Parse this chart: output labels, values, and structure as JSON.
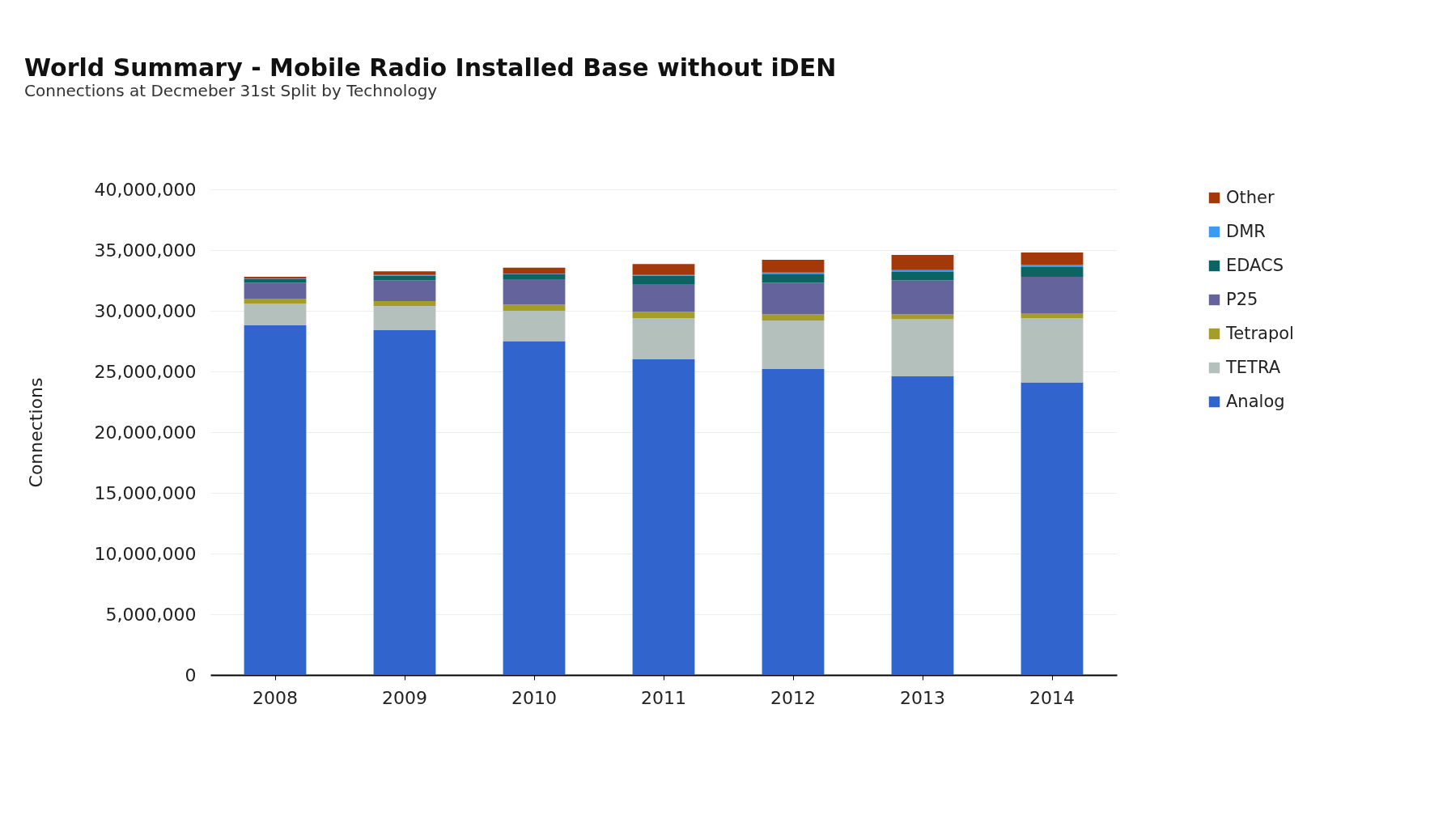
{
  "chart_data": {
    "type": "bar",
    "title": "World Summary - Mobile Radio Installed Base without iDEN",
    "subtitle": "Connections at Decmeber 31st Split by Technology",
    "ylabel": "Connections",
    "stacked": true,
    "grid": "y",
    "legend": "right",
    "categories": [
      "2008",
      "2009",
      "2010",
      "2011",
      "2012",
      "2013",
      "2014"
    ],
    "ylim": [
      0,
      40000000
    ],
    "yticks": [
      0,
      {
        "value": 5000000,
        "label": "5,000,000"
      },
      {
        "value": 10000000,
        "label": "10,000,000"
      },
      {
        "value": 15000000,
        "label": "15,000,000"
      },
      {
        "value": 20000000,
        "label": "20,000,000"
      },
      {
        "value": 25000000,
        "label": "25,000,000"
      },
      {
        "value": 30000000,
        "label": "30,000,000"
      },
      {
        "value": 35000000,
        "label": "35,000,000"
      },
      {
        "value": 40000000,
        "label": "40,000,000"
      }
    ],
    "series": [
      {
        "name": "Analog",
        "color": "#3164cc",
        "values": [
          28800000,
          28400000,
          27500000,
          26000000,
          25200000,
          24600000,
          24100000
        ]
      },
      {
        "name": "TETRA",
        "color": "#b3c0bb",
        "values": [
          1800000,
          2000000,
          2500000,
          3400000,
          4000000,
          4700000,
          5300000
        ]
      },
      {
        "name": "Tetrapol",
        "color": "#a59d2a",
        "values": [
          400000,
          400000,
          500000,
          500000,
          500000,
          400000,
          400000
        ]
      },
      {
        "name": "P25",
        "color": "#64639c",
        "values": [
          1300000,
          1700000,
          2100000,
          2300000,
          2600000,
          2800000,
          3000000
        ]
      },
      {
        "name": "EDACS",
        "color": "#0b6461",
        "values": [
          300000,
          400000,
          400000,
          700000,
          700000,
          700000,
          800000
        ]
      },
      {
        "name": "DMR",
        "color": "#3d9af0",
        "values": [
          50000,
          50000,
          50000,
          50000,
          150000,
          150000,
          200000
        ]
      },
      {
        "name": "Other",
        "color": "#a33808",
        "values": [
          150000,
          300000,
          500000,
          900000,
          1050000,
          1250000,
          1000000
        ]
      }
    ]
  }
}
